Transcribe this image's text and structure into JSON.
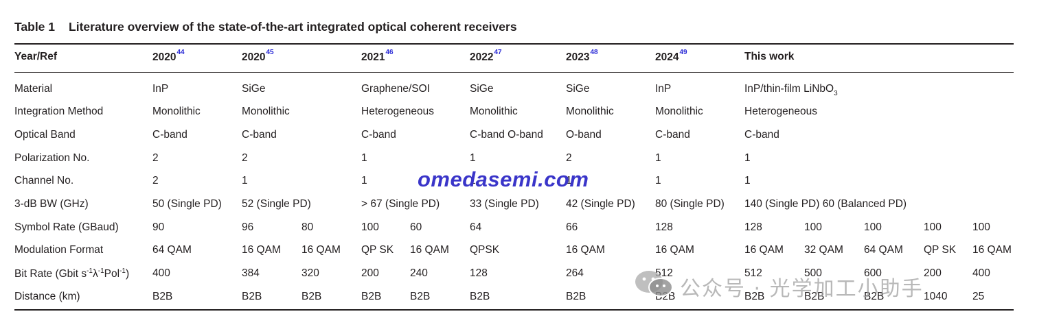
{
  "caption": {
    "label": "Table 1",
    "title": "Literature overview of the state-of-the-art integrated optical coherent receivers"
  },
  "header": [
    {
      "text": "Year/Ref",
      "ref": ""
    },
    {
      "text": "2020",
      "ref": "44"
    },
    {
      "text": "2020",
      "ref": "45"
    },
    {
      "text": "2021",
      "ref": "46"
    },
    {
      "text": "2022",
      "ref": "47"
    },
    {
      "text": "2023",
      "ref": "48"
    },
    {
      "text": "2024",
      "ref": "49"
    },
    {
      "text": "This work",
      "ref": ""
    }
  ],
  "rows": {
    "material": {
      "label": "Material",
      "cells": [
        "InP",
        "SiGe",
        "Graphene/SOI",
        "SiGe",
        "SiGe",
        "InP"
      ],
      "this_work_prefix": "InP/thin-film LiNbO",
      "this_work_sub": "3"
    },
    "integration": {
      "label": "Integration Method",
      "cells": [
        "Monolithic",
        "Monolithic",
        "Heterogeneous",
        "Monolithic",
        "Monolithic",
        "Monolithic",
        "Heterogeneous"
      ]
    },
    "band": {
      "label": "Optical Band",
      "cells": [
        "C-band",
        "C-band",
        "C-band",
        "C-band O-band",
        "O-band",
        "C-band",
        "C-band"
      ]
    },
    "polarization": {
      "label": "Polarization No.",
      "cells": [
        "2",
        "2",
        "1",
        "1",
        "2",
        "1",
        "1"
      ]
    },
    "channel": {
      "label": "Channel No.",
      "cells": [
        "2",
        "1",
        "1",
        "1",
        "1",
        "1",
        "1"
      ]
    },
    "bw": {
      "label": "3-dB BW (GHz)",
      "cells": [
        "50 (Single PD)",
        "52 (Single PD)",
        "> 67 (Single PD)",
        "33 (Single PD)",
        "42 (Single PD)",
        "80 (Single PD)",
        "140 (Single PD) 60 (Balanced PD)"
      ]
    },
    "symbol": {
      "label": "Symbol Rate (GBaud)",
      "cells": [
        "90",
        "96",
        "80",
        "100",
        "60",
        "64",
        "66",
        "128",
        "128",
        "100",
        "100",
        "100",
        "100"
      ]
    },
    "modulation": {
      "label": "Modulation Format",
      "cells": [
        "64 QAM",
        "16 QAM",
        "16 QAM",
        "QP SK",
        "16 QAM",
        "QPSK",
        "16 QAM",
        "16 QAM",
        "16 QAM",
        "32 QAM",
        "64 QAM",
        "QP SK",
        "16 QAM"
      ]
    },
    "bitrate": {
      "label_a": "Bit Rate (Gbit s",
      "exp1": "-1",
      "label_b": "λ",
      "exp2": "-1",
      "label_c": "Pol",
      "exp3": "-1",
      "label_d": ")",
      "cells": [
        "400",
        "384",
        "320",
        "200",
        "240",
        "128",
        "264",
        "512",
        "512",
        "500",
        "600",
        "200",
        "400"
      ]
    },
    "distance": {
      "label": "Distance (km)",
      "cells": [
        "B2B",
        "B2B",
        "B2B",
        "B2B",
        "B2B",
        "B2B",
        "B2B",
        "B2B",
        "B2B",
        "B2B",
        "B2B",
        "1040",
        "25"
      ]
    }
  },
  "watermark": {
    "site": "omedasemi.com",
    "wechat": "公众号 · 光学加工小助手",
    "wechat_icon": "wechat-icon"
  }
}
